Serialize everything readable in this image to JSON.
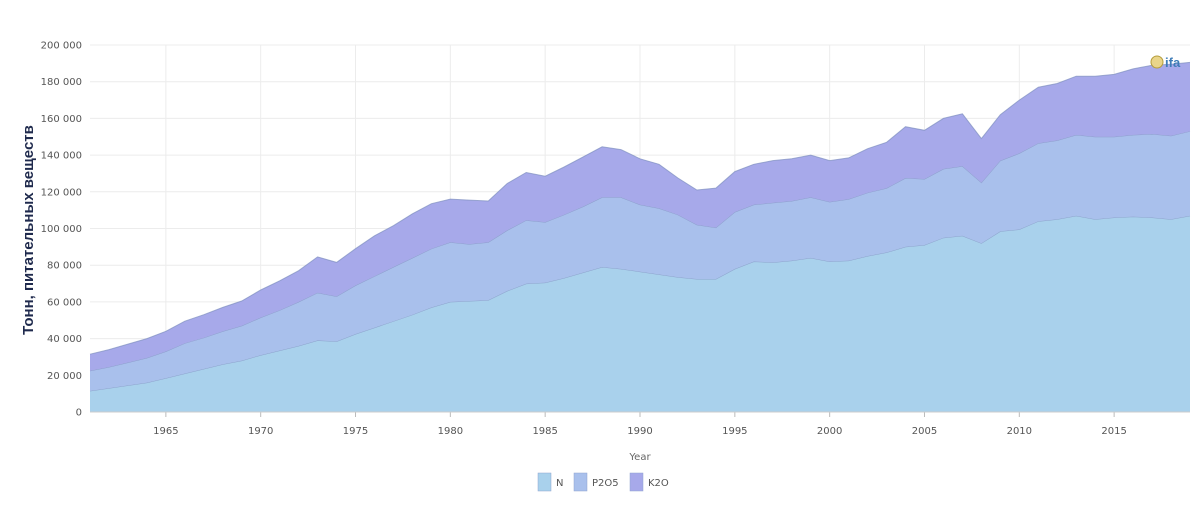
{
  "chart_data": {
    "type": "area",
    "stacked": true,
    "title": "",
    "xlabel": "Year",
    "ylabel": "Тонн, питательных веществ",
    "xlim": [
      1961,
      2019
    ],
    "ylim": [
      0,
      200000
    ],
    "x_ticks": [
      1965,
      1970,
      1975,
      1980,
      1985,
      1990,
      1995,
      2000,
      2005,
      2010,
      2015
    ],
    "y_ticks": [
      0,
      20000,
      40000,
      60000,
      80000,
      100000,
      120000,
      140000,
      160000,
      180000,
      200000
    ],
    "y_tick_labels": [
      "0",
      "20 000",
      "40 000",
      "60 000",
      "80 000",
      "100 000",
      "120 000",
      "140 000",
      "160 000",
      "180 000",
      "200 000"
    ],
    "grid": true,
    "legend_position": "bottom",
    "logo_text": "ifa",
    "x": [
      1961,
      1962,
      1963,
      1964,
      1965,
      1966,
      1967,
      1968,
      1969,
      1970,
      1971,
      1972,
      1973,
      1974,
      1975,
      1976,
      1977,
      1978,
      1979,
      1980,
      1981,
      1982,
      1983,
      1984,
      1985,
      1986,
      1987,
      1988,
      1989,
      1990,
      1991,
      1992,
      1993,
      1994,
      1995,
      1996,
      1997,
      1998,
      1999,
      2000,
      2001,
      2002,
      2003,
      2004,
      2005,
      2006,
      2007,
      2008,
      2009,
      2010,
      2011,
      2012,
      2013,
      2014,
      2015,
      2016,
      2017,
      2018,
      2019
    ],
    "series": [
      {
        "name": "N",
        "color": "#a9d1ec",
        "values": [
          11500,
          13000,
          14500,
          16000,
          18500,
          21000,
          23500,
          26000,
          28000,
          31000,
          33500,
          36000,
          39000,
          38500,
          42500,
          46000,
          49500,
          53000,
          57000,
          60000,
          60500,
          61000,
          66000,
          70000,
          70500,
          73000,
          76000,
          79000,
          78000,
          76500,
          75000,
          73500,
          72500,
          72500,
          78000,
          82000,
          81500,
          82500,
          84000,
          82000,
          82500,
          85000,
          87000,
          90000,
          91000,
          95000,
          96000,
          92000,
          98500,
          99500,
          104000,
          105000,
          107000,
          105000,
          106000,
          106500,
          106000,
          105000,
          107000
        ]
      },
      {
        "name": "P2O5",
        "color": "#a9c0ec",
        "values": [
          11000,
          11500,
          12500,
          13500,
          14500,
          16500,
          17000,
          18000,
          19000,
          20500,
          22000,
          24000,
          26000,
          24500,
          26500,
          28000,
          29500,
          31000,
          32000,
          32500,
          31000,
          31500,
          33000,
          34500,
          33000,
          34500,
          36000,
          38000,
          39000,
          36500,
          36000,
          34000,
          29500,
          28000,
          31000,
          31000,
          32500,
          32500,
          33000,
          32500,
          33500,
          34500,
          35000,
          37500,
          36000,
          37500,
          38000,
          33000,
          38500,
          41500,
          42500,
          43000,
          44000,
          45000,
          44000,
          44500,
          45500,
          45500,
          46000
        ]
      },
      {
        "name": "K2O",
        "color": "#a7a9ea",
        "values": [
          9000,
          9500,
          10000,
          10500,
          11000,
          12000,
          12500,
          13000,
          13500,
          15000,
          16000,
          17000,
          19500,
          18500,
          20000,
          22000,
          22500,
          24000,
          24500,
          23500,
          24000,
          22500,
          25500,
          26000,
          25000,
          26000,
          27000,
          27500,
          26000,
          25000,
          24000,
          20000,
          19000,
          21500,
          22000,
          22000,
          23000,
          23000,
          23000,
          22500,
          22500,
          24000,
          25000,
          28000,
          26500,
          27500,
          28500,
          24000,
          25000,
          29000,
          30500,
          31000,
          32000,
          33000,
          34000,
          36000,
          37500,
          39000,
          37500
        ]
      }
    ]
  }
}
